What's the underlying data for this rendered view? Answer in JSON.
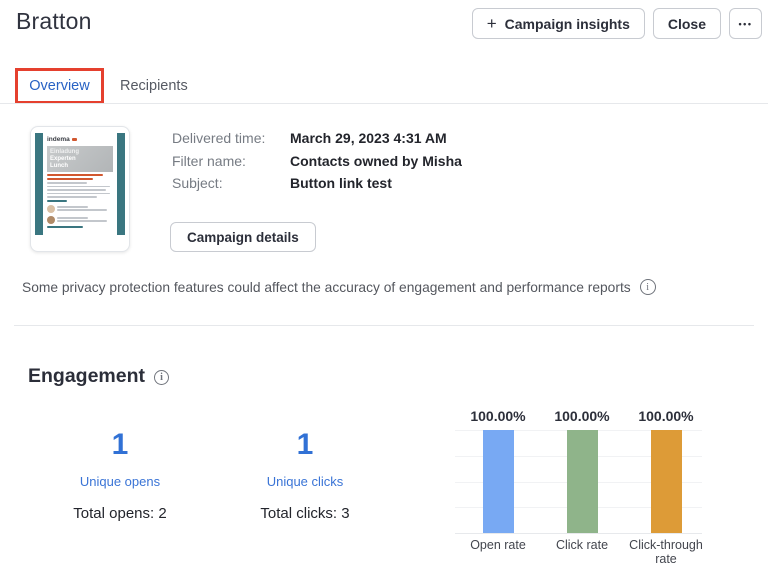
{
  "header": {
    "title": "Bratton",
    "buttons": {
      "campaign_insights": "Campaign insights",
      "close": "Close"
    }
  },
  "icons": {
    "plus": "+",
    "more": "•••",
    "info": "i"
  },
  "tabs": {
    "overview": "Overview",
    "recipients": "Recipients"
  },
  "campaign_info": {
    "rows": [
      {
        "label": "Delivered time:",
        "value": "March 29, 2023 4:31 AM"
      },
      {
        "label": "Filter name:",
        "value": "Contacts owned by Misha"
      },
      {
        "label": "Subject:",
        "value": "Button link test"
      }
    ],
    "details_button": "Campaign details"
  },
  "email_preview": {
    "brand": "indema",
    "hero_lines": [
      "Einladung",
      "Experten",
      "Lunch"
    ]
  },
  "privacy_note": "Some privacy protection features could affect the accuracy of engagement and performance reports",
  "engagement": {
    "heading": "Engagement",
    "stats": [
      {
        "value": "1",
        "label": "Unique opens",
        "total": "Total opens: 2"
      },
      {
        "value": "1",
        "label": "Unique clicks",
        "total": "Total clicks: 3"
      }
    ]
  },
  "chart_data": {
    "type": "bar",
    "categories": [
      "Open rate",
      "Click rate",
      "Click-through rate"
    ],
    "values": [
      100,
      100,
      100
    ],
    "value_labels": [
      "100.00%",
      "100.00%",
      "100.00%"
    ],
    "colors": [
      "#78a9f3",
      "#8fb48a",
      "#dd9b37"
    ],
    "title": "",
    "xlabel": "",
    "ylabel": "",
    "ylim": [
      0,
      100
    ],
    "grid": true,
    "gridline_count": 5,
    "legend": false
  },
  "colors": {
    "accent_blue": "#3171d5",
    "annotation_red": "#e5402e",
    "bar_blue": "#78a9f3",
    "bar_green": "#8fb48a",
    "bar_orange": "#dd9b37"
  }
}
